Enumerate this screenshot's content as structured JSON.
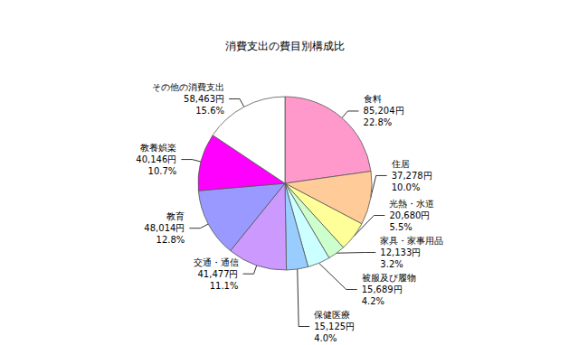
{
  "chart_data": {
    "type": "pie",
    "title": "消費支出の費目別構成比",
    "categories": [
      "食料",
      "住居",
      "光熱・水道",
      "家具・家事用品",
      "被服及び履物",
      "保健医療",
      "交通・通信",
      "教育",
      "教養娯楽",
      "その他の消費支出"
    ],
    "values": [
      85204,
      37278,
      20680,
      12133,
      15689,
      15125,
      41477,
      48014,
      40146,
      58463
    ],
    "value_labels": [
      "85,204円",
      "37,278円",
      "20,680円",
      "12,133円",
      "15,689円",
      "15,125円",
      "41,477円",
      "48,014円",
      "40,146円",
      "58,463円"
    ],
    "percents": [
      22.8,
      10.0,
      5.5,
      3.2,
      4.2,
      4.0,
      11.1,
      12.8,
      10.7,
      15.6
    ],
    "percent_labels": [
      "22.8%",
      "10.0%",
      "5.5%",
      "3.2%",
      "4.2%",
      "4.0%",
      "11.1%",
      "12.8%",
      "10.7%",
      "15.6%"
    ],
    "colors": [
      "#ff99cc",
      "#ffcc99",
      "#ffff99",
      "#ccffcc",
      "#ccffff",
      "#99ccff",
      "#cc99ff",
      "#9999ff",
      "#ff00ff",
      "#ffffff"
    ],
    "data_labels": true
  }
}
